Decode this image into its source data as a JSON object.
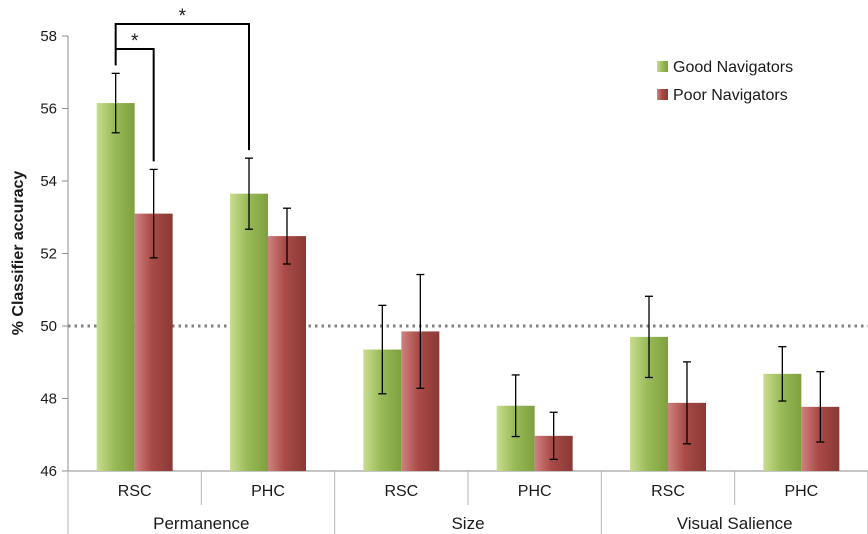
{
  "chart_data": {
    "type": "bar",
    "title": "",
    "ylabel": "% Classifier accuracy",
    "xlabel": "",
    "ylim": [
      46,
      58
    ],
    "yticks": [
      46,
      48,
      50,
      52,
      54,
      56,
      58
    ],
    "groups": [
      "Permanence",
      "Size",
      "Visual Salience"
    ],
    "categories": [
      "RSC",
      "PHC",
      "RSC",
      "PHC",
      "RSC",
      "PHC"
    ],
    "category_group": [
      0,
      0,
      1,
      1,
      2,
      2
    ],
    "series": [
      {
        "name": "Good Navigators",
        "color": "#9bbb59",
        "values": [
          56.15,
          53.65,
          49.35,
          47.8,
          49.7,
          48.68
        ],
        "error": [
          0.82,
          0.98,
          1.22,
          0.85,
          1.12,
          0.75
        ]
      },
      {
        "name": "Poor Navigators",
        "color": "#a94a47",
        "values": [
          53.1,
          52.48,
          49.85,
          46.97,
          47.88,
          47.77
        ],
        "error": [
          1.22,
          0.77,
          1.57,
          0.65,
          1.13,
          0.97
        ]
      }
    ],
    "reference_line": {
      "y": 50,
      "style": "dotted",
      "color": "#808080"
    },
    "legend": {
      "position": "top-right"
    },
    "grid": false,
    "significance": [
      {
        "label": "*",
        "comparison": "Permanence RSC Good Navigators vs Poor Navigators"
      },
      {
        "label": "*",
        "comparison": "Permanence Good Navigators RSC vs PHC"
      }
    ]
  }
}
